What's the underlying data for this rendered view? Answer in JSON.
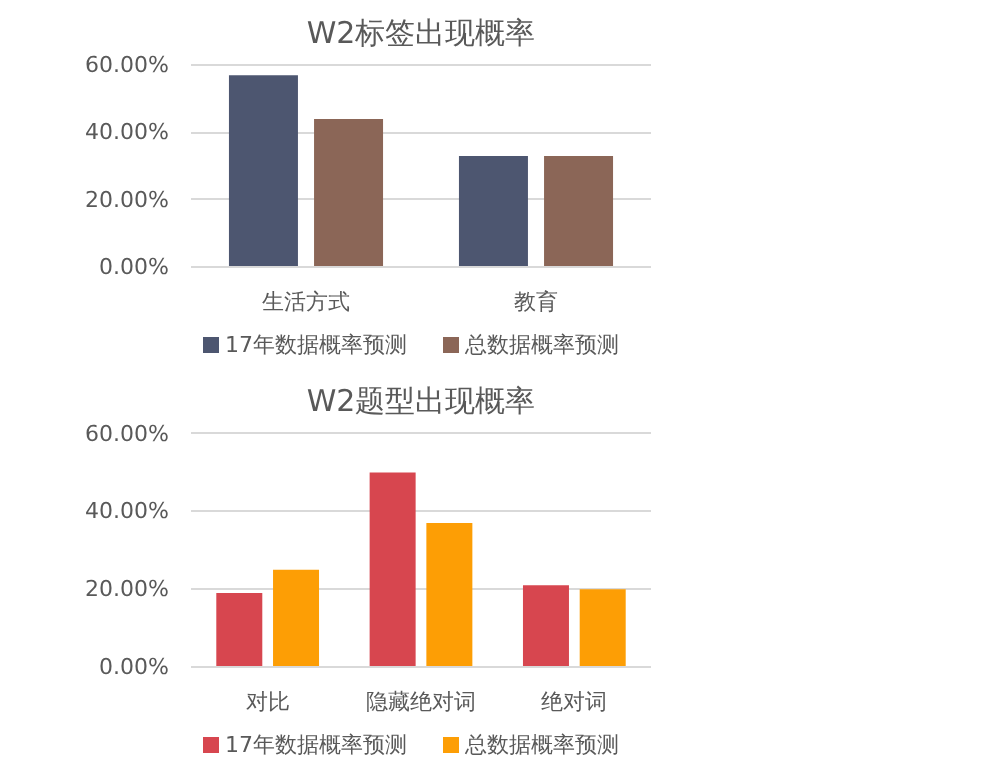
{
  "chart_data": [
    {
      "type": "bar",
      "title": "W2标签出现概率",
      "categories": [
        "生活方式",
        "教育"
      ],
      "series": [
        {
          "name": "17年数据概率预测",
          "color": "#4d5670",
          "values": [
            57,
            33
          ]
        },
        {
          "name": "总数据概率预测",
          "color": "#8b6657",
          "values": [
            44,
            33
          ]
        }
      ],
      "ylim": [
        0,
        60
      ],
      "yticks": [
        {
          "value": 0,
          "label": "0.00%"
        },
        {
          "value": 20,
          "label": "20.00%"
        },
        {
          "value": 40,
          "label": "40.00%"
        },
        {
          "value": 60,
          "label": "60.00%"
        }
      ],
      "grid": "y",
      "legend": "bottom"
    },
    {
      "type": "bar",
      "title": "W2题型出现概率",
      "categories": [
        "对比",
        "隐藏绝对词",
        "绝对词"
      ],
      "series": [
        {
          "name": "17年数据概率预测",
          "color": "#d7464f",
          "values": [
            19,
            50,
            21
          ]
        },
        {
          "name": "总数据概率预测",
          "color": "#fd9e05",
          "values": [
            25,
            37,
            20
          ]
        }
      ],
      "ylim": [
        0,
        60
      ],
      "yticks": [
        {
          "value": 0,
          "label": "0.00%"
        },
        {
          "value": 20,
          "label": "20.00%"
        },
        {
          "value": 40,
          "label": "40.00%"
        },
        {
          "value": 60,
          "label": "60.00%"
        }
      ],
      "grid": "y",
      "legend": "bottom"
    }
  ]
}
